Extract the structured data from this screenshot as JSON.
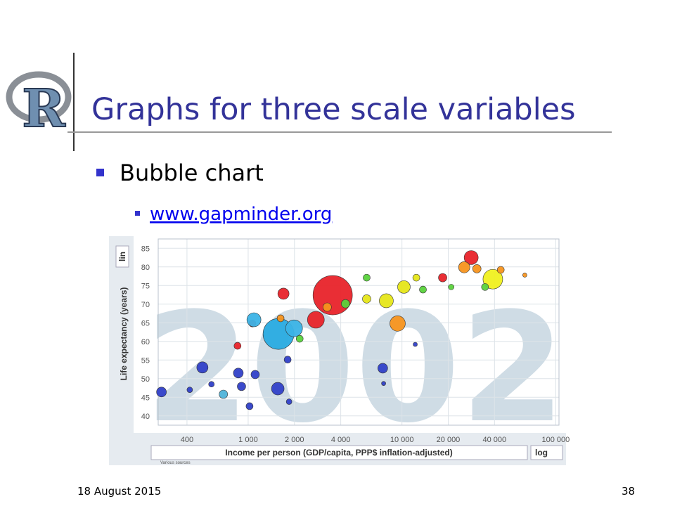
{
  "logo": {
    "letter": "R"
  },
  "slide": {
    "title": "Graphs for three scale variables",
    "bullet": "Bubble chart",
    "link": "www.gapminder.org",
    "footer": {
      "date": "18 August 2015",
      "page": "38"
    }
  },
  "chart_data": {
    "type": "bubble",
    "year": "2002",
    "x_label": "Income per person (GDP/capita, PPP$ inflation-adjusted)",
    "y_label": "Life expectancy (years)",
    "y_scale_label": "lin",
    "x_scale_label": "log",
    "source": "Various sources",
    "xscale": "log",
    "grid": true,
    "xlim": [
      260,
      105000
    ],
    "ylim": [
      37.5,
      87.5
    ],
    "xticks": [
      400,
      {
        "value": 1000,
        "label": "1 000"
      },
      {
        "value": 2000,
        "label": "2 000"
      },
      {
        "value": 4000,
        "label": "4 000"
      },
      {
        "value": 10000,
        "label": "10 000"
      },
      {
        "value": 20000,
        "label": "20 000"
      },
      {
        "value": 40000,
        "label": "40 000"
      },
      {
        "value": 100000,
        "label": "100 000"
      }
    ],
    "yticks": [
      40,
      45,
      50,
      55,
      60,
      65,
      70,
      75,
      80,
      85
    ],
    "x": [
      273,
      504,
      577,
      690,
      863,
      905,
      1021,
      1065,
      1090,
      853,
      1111,
      1558,
      1575,
      1988,
      1806,
      2163,
      1696,
      1625,
      2756,
      3545,
      3266,
      4295,
      5897,
      7914,
      9369,
      7502,
      10300,
      12200,
      7600,
      28200,
      25400,
      30700,
      39000,
      43900,
      62900,
      18400,
      13700,
      5897,
      34700,
      1845,
      417,
      12400,
      20900
    ],
    "values": [
      46.4,
      53,
      48.5,
      45.8,
      51.5,
      47.9,
      42.6,
      64.8,
      65.8,
      58.8,
      51.1,
      47.3,
      62.0,
      63.5,
      55.1,
      60.7,
      72.8,
      66.2,
      65.8,
      72.4,
      69.2,
      70.1,
      71.4,
      70.9,
      64.8,
      52.8,
      74.6,
      59.2,
      48.7,
      82.5,
      79.9,
      79.5,
      76.7,
      79.2,
      77.8,
      77.1,
      73.9,
      77.1,
      74.6,
      43.8,
      47.0,
      77.1,
      74.6
    ],
    "sizes": [
      7,
      8,
      4,
      6,
      7,
      6,
      5,
      5,
      10,
      5,
      6,
      9,
      22,
      12,
      5,
      5,
      8,
      5,
      12,
      28,
      6,
      6,
      6,
      10,
      11,
      7,
      9,
      3,
      3,
      10,
      8,
      6,
      14,
      5,
      3,
      6,
      5,
      5,
      5,
      4,
      4,
      5,
      4
    ],
    "colors": [
      "#3040c8",
      "#3040c8",
      "#3040c8",
      "#4fb3d9",
      "#3040c8",
      "#3040c8",
      "#3040c8",
      "#e8232a",
      "#3bb3e6",
      "#e8232a",
      "#3040c8",
      "#3040c8",
      "#29abe2",
      "#3bb3e6",
      "#3040c8",
      "#5ad23c",
      "#e8232a",
      "#f7941d",
      "#e8232a",
      "#e8232a",
      "#f7941d",
      "#5ad23c",
      "#e6e619",
      "#e6e619",
      "#f7941d",
      "#3040c8",
      "#e6e619",
      "#3040c8",
      "#3040c8",
      "#e8232a",
      "#f7941d",
      "#f7941d",
      "#f0f020",
      "#f7941d",
      "#f7941d",
      "#e8232a",
      "#5ad23c",
      "#5ad23c",
      "#5ad23c",
      "#3040c8",
      "#3040c8",
      "#e6e619",
      "#5ad23c"
    ]
  }
}
